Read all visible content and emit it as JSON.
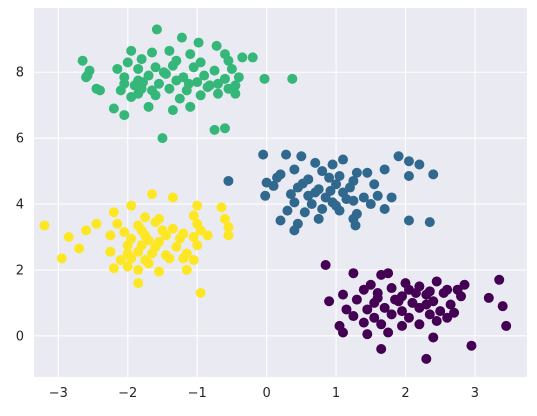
{
  "chart_data": {
    "type": "scatter",
    "title": "",
    "xlabel": "",
    "ylabel": "",
    "xlim": [
      -3.35,
      3.75
    ],
    "ylim": [
      -1.25,
      9.95
    ],
    "xticks": [
      -3,
      -2,
      -1,
      0,
      1,
      2,
      3
    ],
    "yticks": [
      0,
      2,
      4,
      6,
      8
    ],
    "xtick_labels": [
      "−3",
      "−2",
      "−1",
      "0",
      "1",
      "2",
      "3"
    ],
    "ytick_labels": [
      "0",
      "2",
      "4",
      "6",
      "8"
    ],
    "grid": true,
    "legend": "none",
    "colors": {
      "background": "#eaeaf2",
      "grid": "#ffffff",
      "cluster_green": "#35b779",
      "cluster_blue": "#31688e",
      "cluster_yellow": "#fde725",
      "cluster_purple": "#440154"
    },
    "series": [
      {
        "color": "#35b779",
        "points": [
          [
            -1.58,
            9.3
          ],
          [
            -1.22,
            9.05
          ],
          [
            -0.98,
            8.9
          ],
          [
            -0.72,
            8.8
          ],
          [
            -1.95,
            8.65
          ],
          [
            -1.65,
            8.6
          ],
          [
            -1.4,
            8.65
          ],
          [
            -1.1,
            8.55
          ],
          [
            -0.6,
            8.55
          ],
          [
            -0.35,
            8.45
          ],
          [
            -0.2,
            8.45
          ],
          [
            -2.65,
            8.35
          ],
          [
            -2.0,
            8.3
          ],
          [
            -1.8,
            8.4
          ],
          [
            -1.3,
            8.35
          ],
          [
            -0.95,
            8.3
          ],
          [
            -0.55,
            8.35
          ],
          [
            -2.55,
            8.05
          ],
          [
            -2.15,
            8.1
          ],
          [
            -1.85,
            8.1
          ],
          [
            -1.6,
            8.15
          ],
          [
            -1.35,
            8.2
          ],
          [
            -1.05,
            8.15
          ],
          [
            -0.75,
            8.05
          ],
          [
            -0.5,
            8.1
          ],
          [
            -2.58,
            7.9
          ],
          [
            -2.05,
            7.85
          ],
          [
            -1.85,
            7.75
          ],
          [
            -1.7,
            7.9
          ],
          [
            -1.45,
            7.95
          ],
          [
            -1.2,
            7.85
          ],
          [
            -0.9,
            7.9
          ],
          [
            -0.6,
            7.8
          ],
          [
            -0.4,
            7.85
          ],
          [
            -0.03,
            7.8
          ],
          [
            0.37,
            7.8
          ],
          [
            -2.6,
            7.85
          ],
          [
            -2.05,
            7.65
          ],
          [
            -1.9,
            7.6
          ],
          [
            -1.55,
            7.65
          ],
          [
            -1.3,
            7.75
          ],
          [
            -1.0,
            7.7
          ],
          [
            -0.7,
            7.65
          ],
          [
            -0.45,
            7.6
          ],
          [
            -2.45,
            7.5
          ],
          [
            -2.1,
            7.45
          ],
          [
            -1.8,
            7.5
          ],
          [
            -1.65,
            7.45
          ],
          [
            -1.4,
            7.5
          ],
          [
            -1.15,
            7.45
          ],
          [
            -0.85,
            7.55
          ],
          [
            -0.55,
            7.5
          ],
          [
            -2.4,
            7.45
          ],
          [
            -1.95,
            7.25
          ],
          [
            -1.6,
            7.3
          ],
          [
            -1.25,
            7.2
          ],
          [
            -0.95,
            7.3
          ],
          [
            -0.7,
            7.35
          ],
          [
            -0.45,
            7.35
          ],
          [
            -1.85,
            7.35
          ],
          [
            -2.2,
            6.9
          ],
          [
            -1.35,
            6.85
          ],
          [
            -1.1,
            6.95
          ],
          [
            -2.05,
            6.7
          ],
          [
            -1.7,
            6.95
          ],
          [
            -0.75,
            6.25
          ],
          [
            -0.6,
            6.3
          ],
          [
            -1.5,
            6.0
          ],
          [
            -1.78,
            7.7
          ],
          [
            -1.48,
            8.0
          ],
          [
            -1.12,
            7.65
          ],
          [
            -0.82,
            7.6
          ]
        ]
      },
      {
        "color": "#31688e",
        "points": [
          [
            -0.05,
            5.5
          ],
          [
            0.28,
            5.5
          ],
          [
            0.5,
            5.45
          ],
          [
            0.7,
            5.25
          ],
          [
            0.95,
            5.2
          ],
          [
            1.1,
            5.35
          ],
          [
            0.4,
            5.05
          ],
          [
            0.8,
            5.0
          ],
          [
            1.3,
            4.95
          ],
          [
            1.45,
            4.95
          ],
          [
            1.9,
            5.45
          ],
          [
            2.05,
            5.3
          ],
          [
            0.2,
            4.9
          ],
          [
            0.6,
            4.75
          ],
          [
            0.9,
            4.8
          ],
          [
            1.05,
            4.85
          ],
          [
            1.25,
            4.7
          ],
          [
            1.7,
            5.05
          ],
          [
            2.2,
            5.2
          ],
          [
            0.0,
            4.65
          ],
          [
            0.1,
            4.55
          ],
          [
            0.45,
            4.5
          ],
          [
            0.75,
            4.45
          ],
          [
            1.0,
            4.6
          ],
          [
            1.2,
            4.5
          ],
          [
            1.55,
            4.6
          ],
          [
            2.05,
            4.85
          ],
          [
            2.4,
            4.9
          ],
          [
            -0.02,
            4.25
          ],
          [
            0.35,
            4.3
          ],
          [
            0.6,
            4.25
          ],
          [
            0.85,
            4.2
          ],
          [
            1.1,
            4.35
          ],
          [
            1.4,
            4.2
          ],
          [
            1.6,
            4.25
          ],
          [
            1.8,
            4.2
          ],
          [
            0.4,
            4.05
          ],
          [
            0.65,
            4.0
          ],
          [
            0.95,
            4.05
          ],
          [
            1.25,
            4.1
          ],
          [
            1.5,
            4.0
          ],
          [
            0.3,
            3.8
          ],
          [
            0.55,
            3.75
          ],
          [
            0.8,
            3.85
          ],
          [
            1.05,
            3.8
          ],
          [
            1.3,
            3.7
          ],
          [
            1.7,
            3.85
          ],
          [
            0.2,
            3.5
          ],
          [
            0.45,
            3.4
          ],
          [
            0.75,
            3.55
          ],
          [
            1.25,
            3.55
          ],
          [
            1.28,
            3.35
          ],
          [
            2.05,
            3.5
          ],
          [
            2.35,
            3.45
          ],
          [
            0.4,
            3.2
          ],
          [
            1.0,
            3.95
          ],
          [
            -0.55,
            4.7
          ],
          [
            0.15,
            4.8
          ],
          [
            0.52,
            4.62
          ],
          [
            0.92,
            4.4
          ],
          [
            1.15,
            4.15
          ],
          [
            0.7,
            4.35
          ]
        ]
      },
      {
        "color": "#fde725",
        "points": [
          [
            -1.65,
            4.3
          ],
          [
            -1.35,
            4.2
          ],
          [
            -1.95,
            3.95
          ],
          [
            -1.0,
            3.95
          ],
          [
            -0.65,
            3.9
          ],
          [
            -2.2,
            3.75
          ],
          [
            -1.75,
            3.6
          ],
          [
            -1.55,
            3.55
          ],
          [
            -1.05,
            3.65
          ],
          [
            -0.6,
            3.55
          ],
          [
            -3.2,
            3.35
          ],
          [
            -2.45,
            3.4
          ],
          [
            -2.15,
            3.4
          ],
          [
            -1.85,
            3.35
          ],
          [
            -1.6,
            3.45
          ],
          [
            -1.0,
            3.4
          ],
          [
            -0.55,
            3.3
          ],
          [
            -2.6,
            3.2
          ],
          [
            -2.05,
            3.15
          ],
          [
            -1.8,
            3.2
          ],
          [
            -1.45,
            3.05
          ],
          [
            -1.2,
            3.1
          ],
          [
            -0.95,
            3.2
          ],
          [
            -0.55,
            3.05
          ],
          [
            -2.85,
            3.0
          ],
          [
            -2.25,
            3.05
          ],
          [
            -1.95,
            2.95
          ],
          [
            -1.7,
            2.9
          ],
          [
            -1.55,
            2.85
          ],
          [
            -1.25,
            2.95
          ],
          [
            -1.05,
            3.0
          ],
          [
            -2.0,
            2.75
          ],
          [
            -1.8,
            2.75
          ],
          [
            -1.6,
            2.7
          ],
          [
            -1.3,
            2.7
          ],
          [
            -1.0,
            2.75
          ],
          [
            -2.7,
            2.65
          ],
          [
            -2.25,
            2.55
          ],
          [
            -2.0,
            2.5
          ],
          [
            -1.85,
            2.55
          ],
          [
            -1.65,
            2.5
          ],
          [
            -1.45,
            2.45
          ],
          [
            -1.15,
            2.5
          ],
          [
            -2.95,
            2.35
          ],
          [
            -2.1,
            2.3
          ],
          [
            -1.95,
            2.35
          ],
          [
            -1.75,
            2.3
          ],
          [
            -1.4,
            2.35
          ],
          [
            -1.2,
            2.35
          ],
          [
            -1.05,
            2.3
          ],
          [
            -2.2,
            2.05
          ],
          [
            -2.0,
            2.1
          ],
          [
            -1.85,
            2.0
          ],
          [
            -1.7,
            2.2
          ],
          [
            -1.55,
            1.95
          ],
          [
            -1.15,
            2.0
          ],
          [
            -1.85,
            1.6
          ],
          [
            -0.95,
            1.3
          ],
          [
            -1.75,
            3.05
          ],
          [
            -1.5,
            3.2
          ],
          [
            -1.35,
            3.25
          ],
          [
            -0.85,
            3.05
          ]
        ]
      },
      {
        "color": "#440154",
        "points": [
          [
            0.85,
            2.15
          ],
          [
            1.25,
            1.9
          ],
          [
            1.65,
            1.85
          ],
          [
            1.75,
            1.9
          ],
          [
            2.45,
            1.65
          ],
          [
            3.35,
            1.7
          ],
          [
            1.5,
            1.55
          ],
          [
            2.0,
            1.6
          ],
          [
            2.2,
            1.5
          ],
          [
            2.85,
            1.55
          ],
          [
            1.4,
            1.4
          ],
          [
            1.8,
            1.45
          ],
          [
            2.05,
            1.4
          ],
          [
            2.35,
            1.35
          ],
          [
            2.6,
            1.4
          ],
          [
            2.75,
            1.4
          ],
          [
            1.1,
            1.25
          ],
          [
            1.6,
            1.3
          ],
          [
            1.95,
            1.2
          ],
          [
            2.15,
            1.3
          ],
          [
            2.3,
            1.25
          ],
          [
            2.55,
            1.3
          ],
          [
            2.8,
            1.2
          ],
          [
            3.2,
            1.15
          ],
          [
            0.9,
            1.05
          ],
          [
            1.3,
            1.1
          ],
          [
            1.55,
            1.0
          ],
          [
            1.85,
            1.1
          ],
          [
            2.1,
            1.0
          ],
          [
            2.4,
            1.05
          ],
          [
            2.65,
            0.95
          ],
          [
            3.4,
            0.9
          ],
          [
            1.15,
            0.8
          ],
          [
            1.45,
            0.8
          ],
          [
            1.7,
            0.85
          ],
          [
            1.95,
            0.75
          ],
          [
            2.2,
            0.85
          ],
          [
            2.5,
            0.75
          ],
          [
            2.7,
            0.7
          ],
          [
            1.25,
            0.6
          ],
          [
            1.55,
            0.55
          ],
          [
            1.8,
            0.65
          ],
          [
            2.05,
            0.55
          ],
          [
            2.35,
            0.65
          ],
          [
            2.6,
            0.55
          ],
          [
            1.05,
            0.3
          ],
          [
            1.4,
            0.4
          ],
          [
            1.65,
            0.35
          ],
          [
            1.95,
            0.3
          ],
          [
            2.2,
            0.35
          ],
          [
            3.45,
            0.3
          ],
          [
            1.1,
            0.1
          ],
          [
            1.45,
            0.05
          ],
          [
            1.75,
            0.1
          ],
          [
            2.4,
            -0.05
          ],
          [
            2.95,
            -0.3
          ],
          [
            1.65,
            -0.4
          ],
          [
            2.3,
            -0.7
          ],
          [
            1.9,
            1.05
          ],
          [
            2.3,
            0.95
          ],
          [
            2.45,
            0.45
          ],
          [
            1.6,
            1.15
          ]
        ]
      }
    ]
  }
}
